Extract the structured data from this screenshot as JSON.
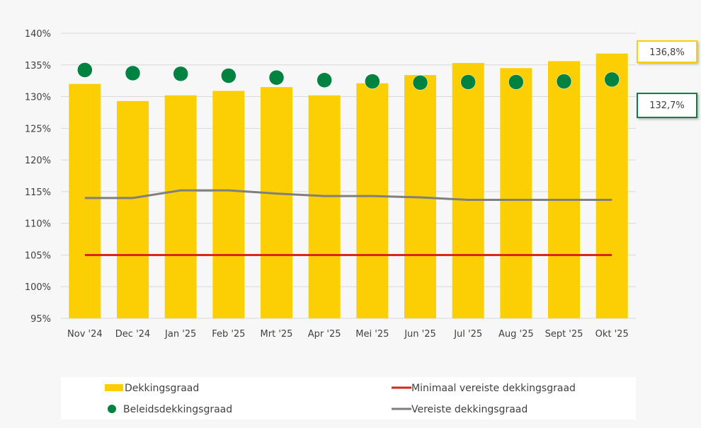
{
  "chart_data": {
    "type": "bar",
    "categories": [
      "Nov '24",
      "Dec '24",
      "Jan '25",
      "Feb '25",
      "Mrt '25",
      "Apr '25",
      "Mei '25",
      "Jun '25",
      "Jul '25",
      "Aug '25",
      "Sept '25",
      "Okt '25"
    ],
    "ylim": [
      95,
      140
    ],
    "yticks": [
      95,
      100,
      105,
      110,
      115,
      120,
      125,
      130,
      135,
      140
    ],
    "ytick_format": "%",
    "grid": true,
    "legend_position": "bottom",
    "series": [
      {
        "name": "Dekkingsgraad",
        "type": "bar",
        "color": "#fccf05",
        "values": [
          132.0,
          129.3,
          130.2,
          130.9,
          131.5,
          130.2,
          132.1,
          133.4,
          135.3,
          134.5,
          135.6,
          136.8
        ]
      },
      {
        "name": "Beleidsdekkingsgraad",
        "type": "scatter",
        "color": "#008341",
        "values": [
          134.2,
          133.7,
          133.6,
          133.3,
          133.0,
          132.6,
          132.4,
          132.2,
          132.3,
          132.3,
          132.4,
          132.7
        ]
      },
      {
        "name": "Minimaal vereiste dekkingsgraad",
        "type": "line",
        "color": "#d9251c",
        "values": [
          105,
          105,
          105,
          105,
          105,
          105,
          105,
          105,
          105,
          105,
          105,
          105
        ]
      },
      {
        "name": "Vereiste dekkingsgraad",
        "type": "line",
        "color": "#7f7f7f",
        "values": [
          114.0,
          114.0,
          115.2,
          115.2,
          114.7,
          114.3,
          114.3,
          114.1,
          113.7,
          113.7,
          113.7,
          113.7
        ]
      }
    ],
    "annotations": [
      {
        "text": "136,8%",
        "series": "Dekkingsgraad",
        "color": "#fccf05"
      },
      {
        "text": "132,7%",
        "series": "Beleidsdekkingsgraad",
        "color": "#008341"
      }
    ]
  }
}
